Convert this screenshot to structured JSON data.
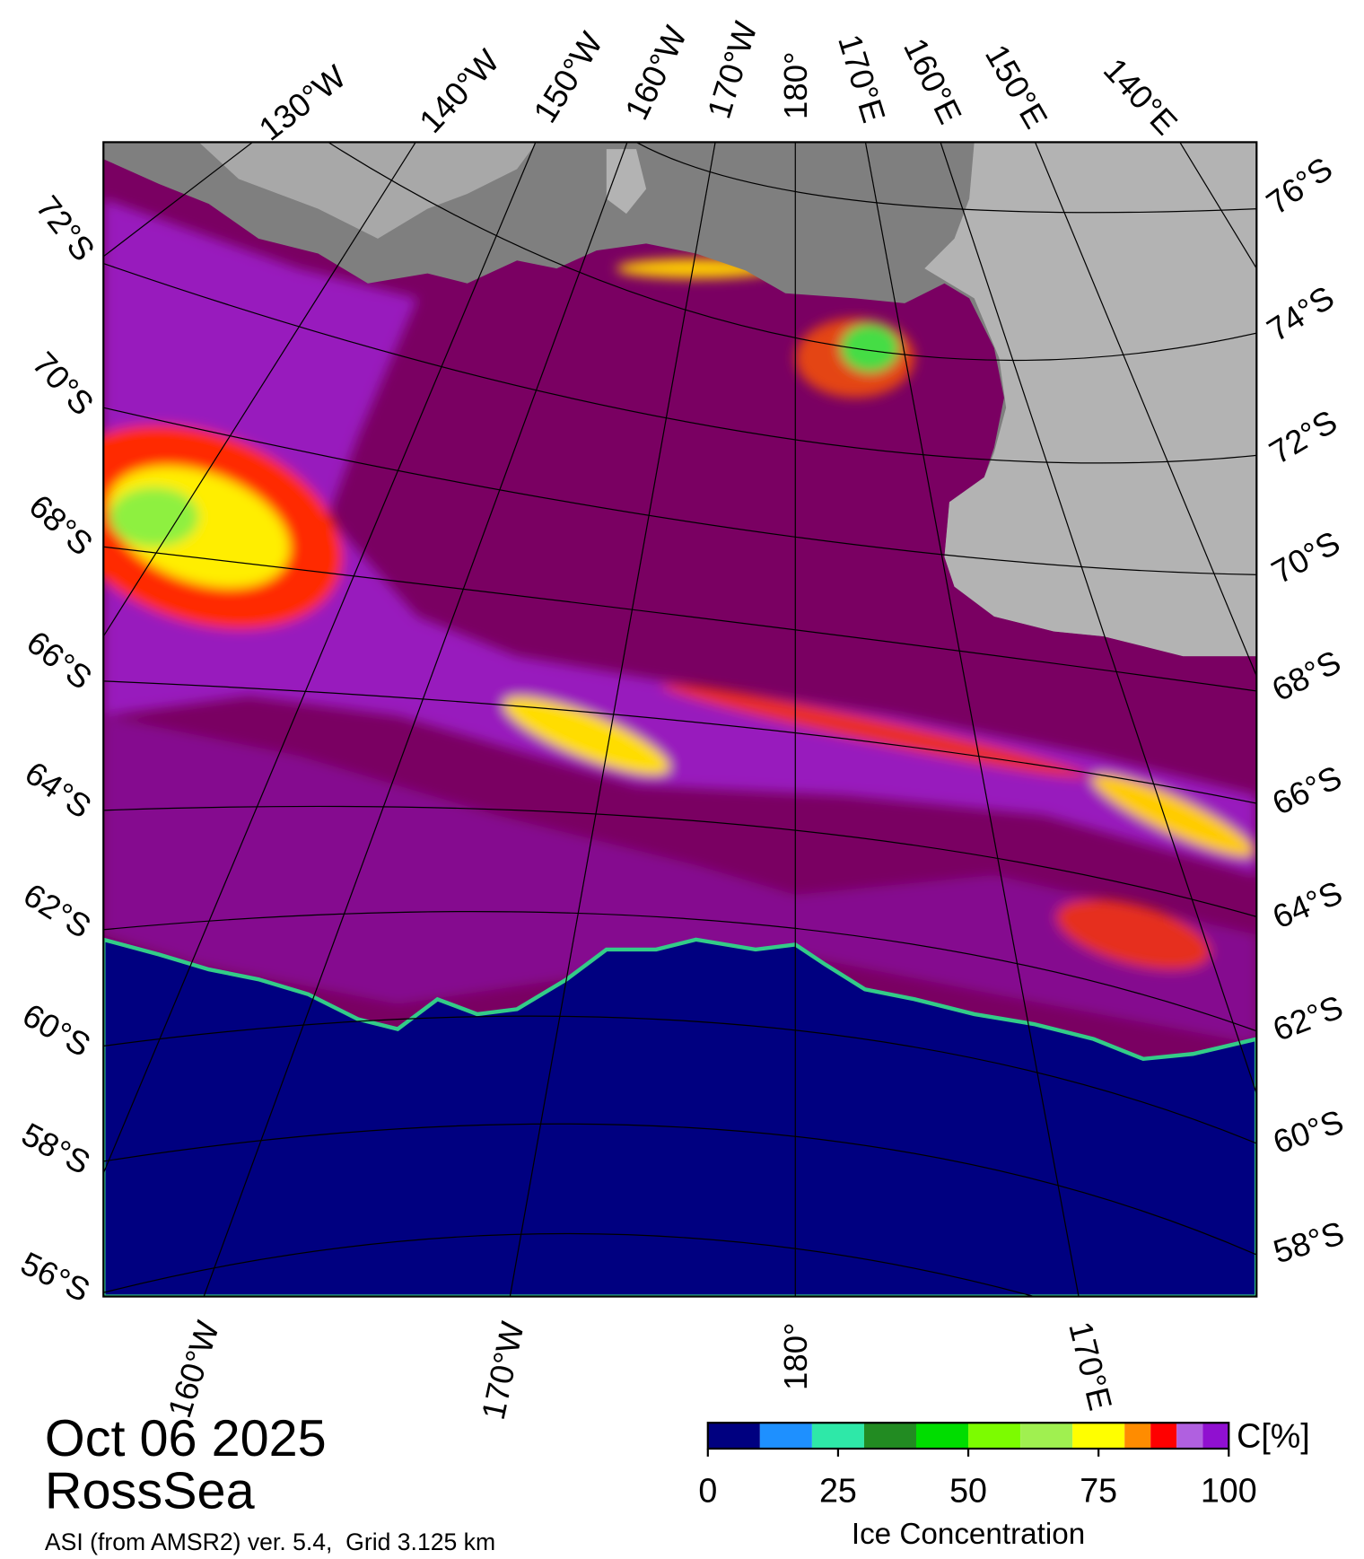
{
  "title_date": "Oct 06 2025",
  "region": "RossSea",
  "source": "ASI (from AMSR2) ver. 5.4,  Grid 3.125 km",
  "map": {
    "top_longitude_labels": [
      "130°W",
      "140°W",
      "150°W",
      "160°W",
      "170°W",
      "180°",
      "170°E",
      "160°E",
      "150°E",
      "140°E"
    ],
    "left_latitude_labels": [
      "72°S",
      "70°S",
      "68°S",
      "66°S",
      "64°S",
      "62°S",
      "60°S",
      "58°S",
      "56°S"
    ],
    "right_latitude_labels": [
      "76°S",
      "74°S",
      "72°S",
      "70°S",
      "68°S",
      "66°S",
      "64°S",
      "62°S",
      "60°S",
      "58°S"
    ],
    "bottom_longitude_labels": [
      "160°W",
      "170°W",
      "180°",
      "170°E"
    ]
  },
  "colorbar": {
    "label": "Ice Concentration",
    "unit": "C[%]",
    "xlim": [
      0,
      100
    ],
    "ticks": [
      0,
      25,
      50,
      75,
      100
    ],
    "bounds": [
      0,
      10,
      20,
      30,
      40,
      50,
      60,
      70,
      80,
      85,
      90,
      95,
      100
    ],
    "colors": [
      "#000080",
      "#1e90ff",
      "#2ee8a8",
      "#228b22",
      "#00dd00",
      "#7cfc00",
      "#a0f050",
      "#ffff00",
      "#ff8c00",
      "#ff0000",
      "#b060e0",
      "#9010d0"
    ]
  }
}
